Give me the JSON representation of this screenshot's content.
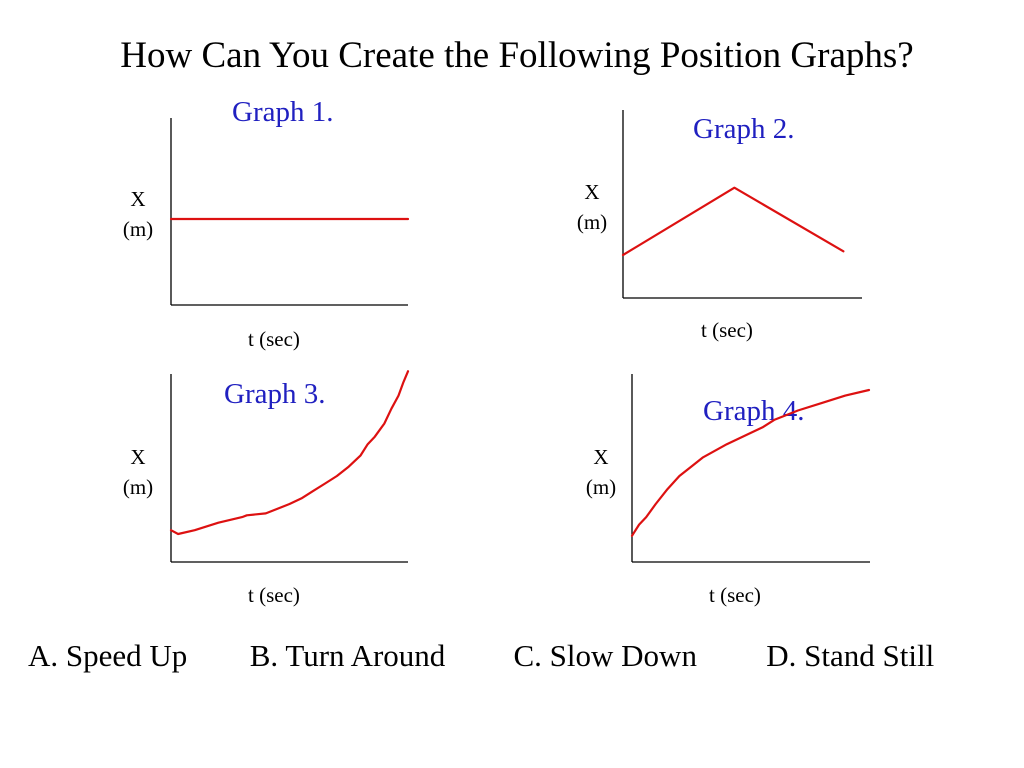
{
  "title": "How Can You Create the Following Position Graphs?",
  "colors": {
    "curve": "#dd1111",
    "graph_title": "#2020c0",
    "axis": "#000000"
  },
  "chart_data": [
    {
      "type": "line",
      "title": "Graph 1.",
      "xlabel": "t (sec)",
      "ylabel": [
        "X",
        "(m)"
      ],
      "xlim": [
        0,
        10
      ],
      "ylim": [
        0,
        10
      ],
      "grid": false,
      "series": [
        {
          "x": [
            0,
            10
          ],
          "y": [
            4.6,
            4.6
          ]
        }
      ]
    },
    {
      "type": "line",
      "title": "Graph 2.",
      "xlabel": "t (sec)",
      "ylabel": [
        "X",
        "(m)"
      ],
      "xlim": [
        0,
        10
      ],
      "ylim": [
        0,
        10
      ],
      "grid": false,
      "series": [
        {
          "x": [
            0,
            4.7,
            9.3
          ],
          "y": [
            2.3,
            5.9,
            2.5
          ]
        }
      ]
    },
    {
      "type": "line",
      "title": "Graph 3.",
      "xlabel": "t (sec)",
      "ylabel": [
        "X",
        "(m)"
      ],
      "xlim": [
        0,
        10
      ],
      "ylim": [
        0,
        10
      ],
      "grid": false,
      "series": [
        {
          "x": [
            0,
            0.3,
            1,
            2,
            3,
            3.2,
            4,
            5,
            5.5,
            6,
            6.5,
            7,
            7.5,
            8,
            8.3,
            8.6,
            9,
            9.3,
            9.6,
            9.8,
            10
          ],
          "y": [
            1.7,
            1.5,
            1.7,
            2.1,
            2.4,
            2.5,
            2.6,
            3.1,
            3.4,
            3.8,
            4.2,
            4.6,
            5.1,
            5.7,
            6.3,
            6.7,
            7.4,
            8.2,
            8.9,
            9.6,
            10.2
          ]
        }
      ]
    },
    {
      "type": "line",
      "title": "Graph 4.",
      "xlabel": "t (sec)",
      "ylabel": [
        "X",
        "(m)"
      ],
      "xlim": [
        0,
        10
      ],
      "ylim": [
        0,
        10
      ],
      "grid": false,
      "series": [
        {
          "x": [
            0,
            0.3,
            0.6,
            1,
            1.5,
            2,
            2.5,
            3,
            4,
            5,
            5.5,
            6,
            7,
            8,
            9,
            10
          ],
          "y": [
            1.4,
            2.0,
            2.4,
            3.1,
            3.9,
            4.6,
            5.1,
            5.6,
            6.3,
            6.9,
            7.2,
            7.6,
            8.1,
            8.5,
            8.9,
            9.2
          ]
        }
      ]
    }
  ],
  "answers": [
    "A. Speed Up",
    "B. Turn Around",
    "C. Slow Down",
    "D. Stand Still"
  ]
}
